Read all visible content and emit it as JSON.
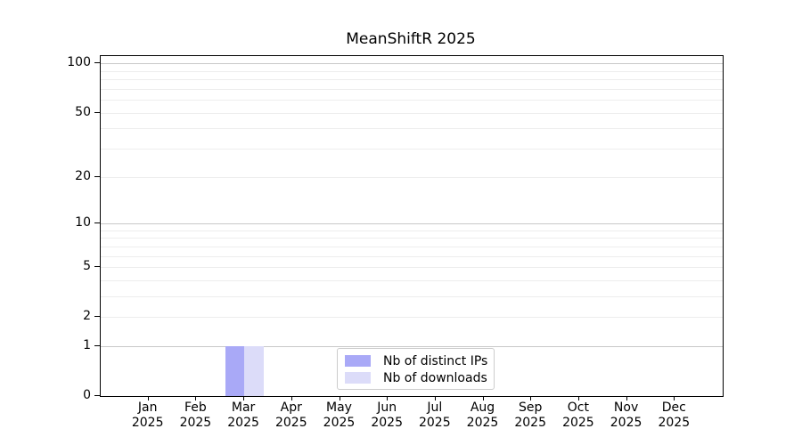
{
  "chart_data": {
    "type": "bar",
    "title": "MeanShiftR 2025",
    "categories": [
      "Jan 2025",
      "Feb 2025",
      "Mar 2025",
      "Apr 2025",
      "May 2025",
      "Jun 2025",
      "Jul 2025",
      "Aug 2025",
      "Sep 2025",
      "Oct 2025",
      "Nov 2025",
      "Dec 2025"
    ],
    "series": [
      {
        "name": "Nb of distinct IPs",
        "color": "#a9a9f7",
        "values": [
          0,
          0,
          1,
          0,
          0,
          0,
          0,
          0,
          0,
          0,
          0,
          0
        ]
      },
      {
        "name": "Nb of downloads",
        "color": "#dcdcf9",
        "values": [
          0,
          0,
          1,
          0,
          0,
          0,
          0,
          0,
          0,
          0,
          0,
          0
        ]
      }
    ],
    "xlabel": "",
    "ylabel": "",
    "yscale": "log1p",
    "ylim": [
      0,
      111
    ],
    "yticks": [
      0,
      1,
      2,
      5,
      10,
      20,
      50,
      100
    ],
    "gridlines": {
      "major": [
        1,
        10,
        100
      ],
      "minor": [
        2,
        3,
        4,
        5,
        6,
        7,
        8,
        9,
        20,
        30,
        40,
        50,
        60,
        70,
        80,
        90
      ]
    },
    "grid": true,
    "legend_position": "lower center",
    "colors": {
      "axis": "#000000",
      "major_grid": "#c9c9c9",
      "minor_grid": "#ededed",
      "background": "#ffffff"
    }
  }
}
